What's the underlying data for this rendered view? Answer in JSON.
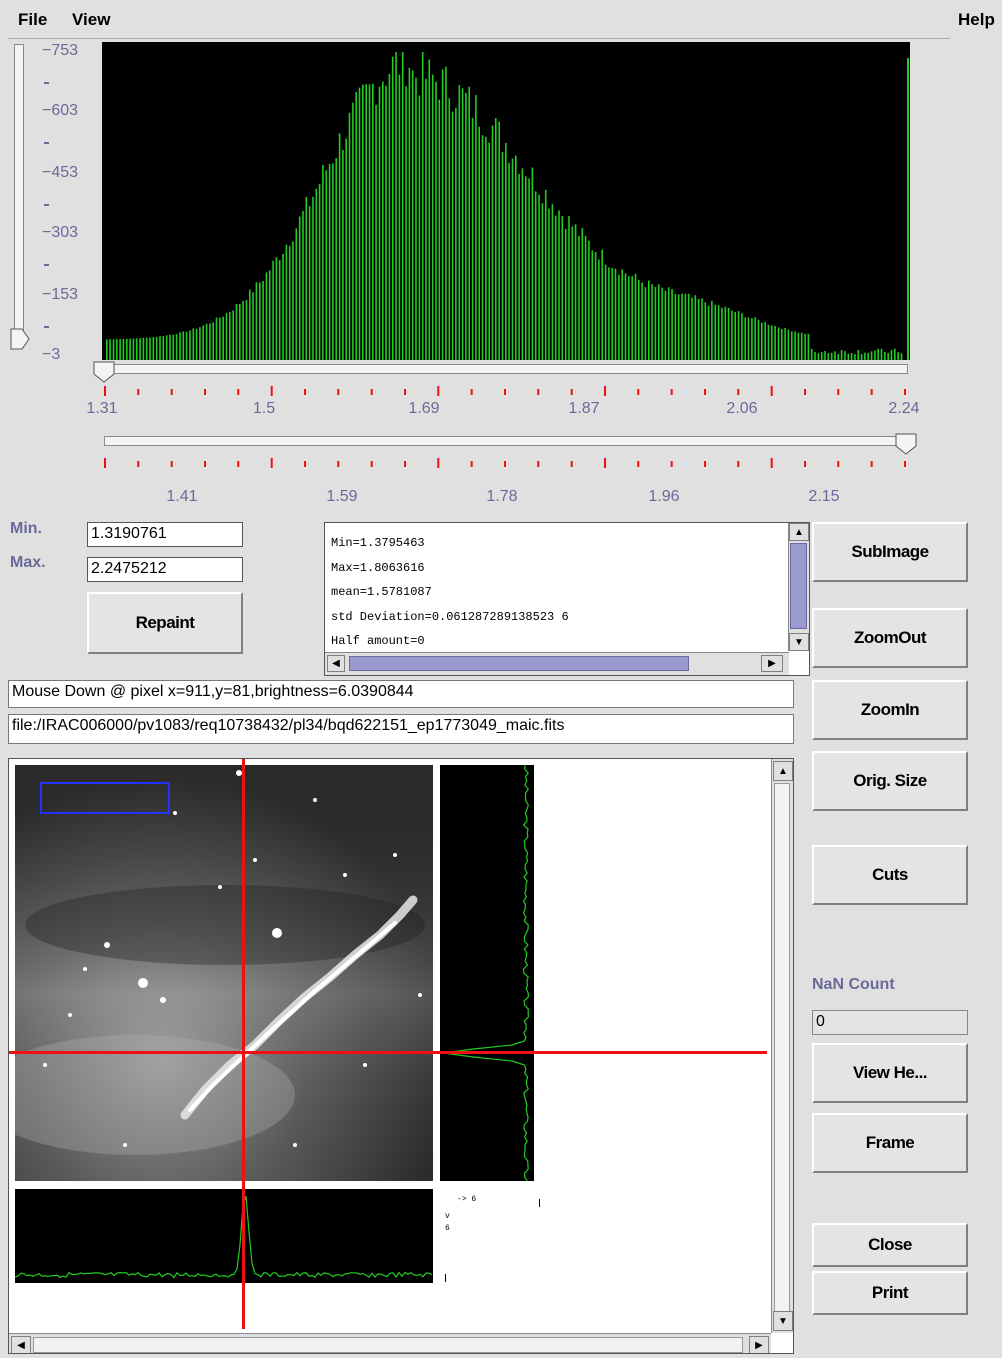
{
  "menu": {
    "file": "File",
    "view": "View",
    "help": "Help"
  },
  "histogram": {
    "y_ticks": [
      "753",
      "603",
      "453",
      "303",
      "153",
      "3"
    ],
    "x_ticks_top": [
      "1.31",
      "1.5",
      "1.69",
      "1.87",
      "2.06",
      "2.24"
    ],
    "x_ticks_bottom": [
      "1.41",
      "1.59",
      "1.78",
      "1.96",
      "2.15"
    ],
    "bar_color": "#22cc22"
  },
  "range": {
    "min_label": "Min.",
    "max_label": "Max.",
    "min_value": "1.3190761",
    "max_value": "2.2475212",
    "repaint_label": "Repaint"
  },
  "stats": {
    "lines": [
      "Min=1.3795463",
      "Max=1.8063616",
      "mean=1.5781087",
      "std Deviation=0.061287289138523 6",
      "Half amount=0"
    ]
  },
  "status": {
    "mouse": "Mouse Down @ pixel x=911,y=81,brightness=6.0390844",
    "file": "file:/IRAC006000/pv1083/req10738432/pl34/bqd622151_ep1773049_maic.fits"
  },
  "buttons": {
    "subimage": "SubImage",
    "zoomout": "ZoomOut",
    "zoomin": "ZoomIn",
    "orig_size": "Orig. Size",
    "cuts": "Cuts",
    "view_header": "View He...",
    "frame": "Frame",
    "close": "Close",
    "print": "Print"
  },
  "nan": {
    "label": "NaN Count",
    "value": "0"
  },
  "mini_legend": {
    "top": "-> 6",
    "side": "v 6"
  }
}
